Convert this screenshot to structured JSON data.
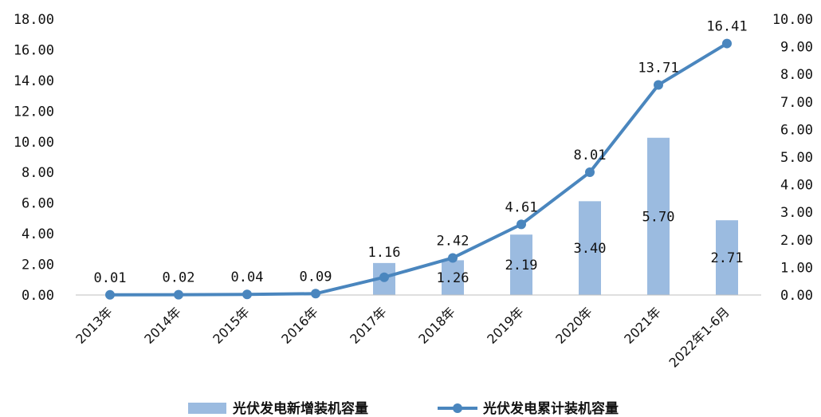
{
  "chart_data": {
    "type": "bar+line",
    "categories": [
      "2013年",
      "2014年",
      "2015年",
      "2016年",
      "2017年",
      "2018年",
      "2019年",
      "2020年",
      "2021年",
      "2022年1-6月"
    ],
    "series": [
      {
        "name": "光伏发电新增装机容量",
        "type": "bar",
        "axis": "right",
        "color": "#9bbbe0",
        "values": [
          null,
          null,
          null,
          null,
          1.16,
          1.26,
          2.19,
          3.4,
          5.7,
          2.71
        ],
        "labels": [
          "",
          "",
          "",
          "",
          "1.16",
          "1.26",
          "2.19",
          "3.40",
          "5.70",
          "2.71"
        ]
      },
      {
        "name": "光伏发电累计装机容量",
        "type": "line",
        "axis": "left",
        "color": "#4a86be",
        "values": [
          0.01,
          0.02,
          0.04,
          0.09,
          1.16,
          2.42,
          4.61,
          8.01,
          13.71,
          16.41
        ],
        "labels": [
          "0.01",
          "0.02",
          "0.04",
          "0.09",
          "",
          "2.42",
          "4.61",
          "8.01",
          "13.71",
          "16.41"
        ]
      }
    ],
    "y_left": {
      "range": [
        0,
        18
      ],
      "ticks": [
        "0.00",
        "2.00",
        "4.00",
        "6.00",
        "8.00",
        "10.00",
        "12.00",
        "14.00",
        "16.00",
        "18.00"
      ]
    },
    "y_right": {
      "range": [
        0,
        10
      ],
      "ticks": [
        "0.00",
        "1.00",
        "2.00",
        "3.00",
        "4.00",
        "5.00",
        "6.00",
        "7.00",
        "8.00",
        "9.00",
        "10.00"
      ]
    },
    "grid": false,
    "legend_position": "bottom"
  }
}
